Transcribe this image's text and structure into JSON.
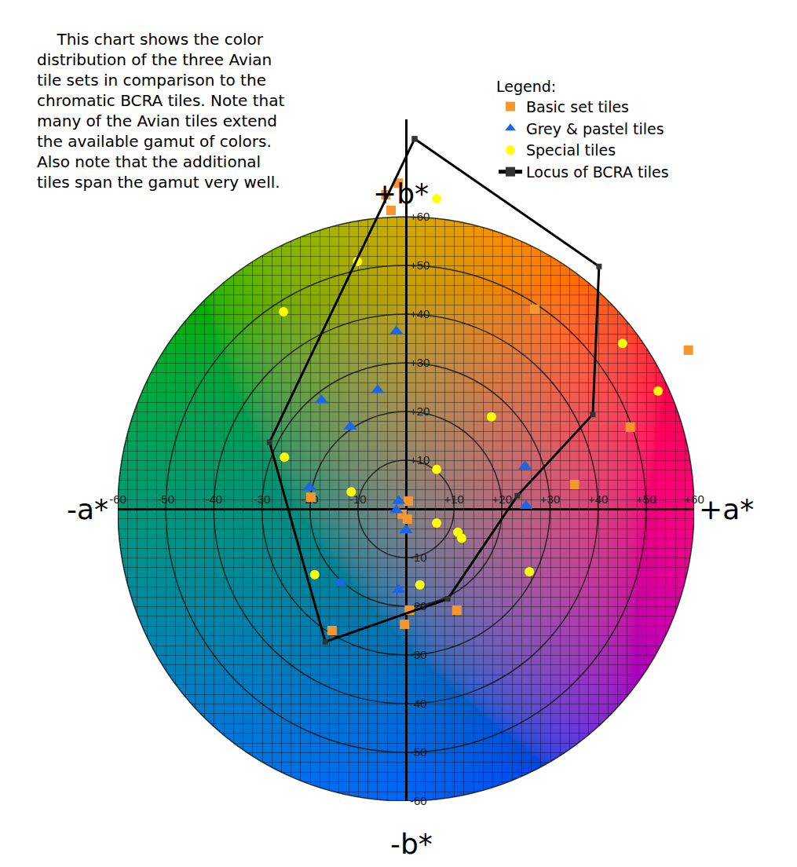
{
  "chart_data": {
    "type": "scatter",
    "annotations": [
      {
        "text": "This chart shows the color distribution of the three Avian tile sets in comparison to the chromatic BCRA tiles. Note that many of the Avian tiles extend the available gamut of colors. Also note that the additional tiles span the gamut very well."
      }
    ],
    "axis_labels": {
      "-x": "-a*",
      "+x": "+a*",
      "+y": "+b*",
      "-y": "-b*"
    },
    "legend_title": "Legend:",
    "legend": "top-right",
    "xlim": [
      -60,
      60
    ],
    "ylim": [
      -60,
      80
    ],
    "xticks": [
      -60,
      -50,
      -40,
      -30,
      -20,
      -10,
      {
        "value": 10,
        "label": "+10"
      },
      {
        "value": 20,
        "label": "+20"
      },
      {
        "value": 30,
        "label": "+30"
      },
      {
        "value": 40,
        "label": "+40"
      },
      {
        "value": 50,
        "label": "+50"
      },
      {
        "value": 60,
        "label": "+60"
      }
    ],
    "yticks": [
      -60,
      -50,
      -40,
      -30,
      -20,
      -10,
      {
        "value": 10,
        "label": "+10"
      },
      {
        "value": 20,
        "label": "+20"
      },
      {
        "value": 30,
        "label": "+30"
      },
      {
        "value": 40,
        "label": "+40"
      },
      {
        "value": 50,
        "label": "+50"
      },
      {
        "value": 60,
        "label": "+60"
      }
    ],
    "series": [
      {
        "name": "Basic set tiles",
        "type": "scatter",
        "marker": "square",
        "color": "#f7962f",
        "x": [
          -1.6,
          -4.2,
          -3.1,
          26.8,
          58.8,
          46.7,
          35.1,
          -19.8,
          0.5,
          -0.8,
          0.3,
          10.6,
          0.7,
          -0.3,
          -15.4
        ],
        "y": [
          66.9,
          64.5,
          61.3,
          41.0,
          32.6,
          16.8,
          5.0,
          2.4,
          1.6,
          -1.1,
          -2.1,
          -20.8,
          -20.8,
          -23.7,
          -25.0
        ]
      },
      {
        "name": "Grey & pastel tiles",
        "type": "scatter",
        "marker": "triangle",
        "color": "#1a66e6",
        "x": [
          -2.0,
          -5.9,
          -17.6,
          -11.6,
          -20.1,
          24.8,
          25.0,
          -1.5,
          -2.0,
          0.0,
          -13.7,
          -1.5
        ],
        "y": [
          36.5,
          24.4,
          22.3,
          16.9,
          4.4,
          8.7,
          0.6,
          1.6,
          -0.3,
          -4.4,
          -15.2,
          -16.6
        ]
      },
      {
        "name": "Special tiles",
        "type": "scatter",
        "marker": "circle",
        "color": "#ffff00",
        "x": [
          6.4,
          -10.1,
          -25.5,
          45.1,
          52.5,
          17.8,
          -25.3,
          6.4,
          -11.4,
          6.4,
          10.8,
          11.6,
          -19.0,
          2.9,
          25.7
        ],
        "y": [
          63.7,
          50.8,
          40.5,
          34.0,
          24.2,
          18.9,
          10.6,
          8.1,
          3.5,
          -2.9,
          -4.8,
          -6.0,
          -13.5,
          -15.6,
          -12.9
        ]
      },
      {
        "name": "Locus of BCRA tiles",
        "type": "line",
        "marker": "square",
        "line_style": "solid",
        "color": "#000000",
        "x": [
          1.8,
          40.2,
          38.9,
          23.2,
          8.7,
          -16.8,
          -28.4,
          1.8
        ],
        "y": [
          76.0,
          49.8,
          19.4,
          2.7,
          -18.5,
          -27.3,
          13.7,
          76.0
        ]
      }
    ]
  }
}
